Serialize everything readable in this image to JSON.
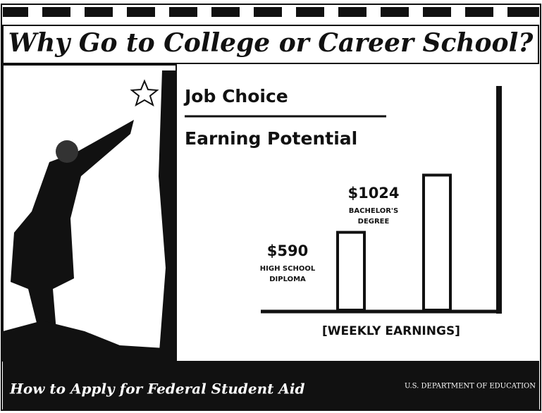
{
  "chart_data": {
    "type": "bar",
    "title": "Why Go to College or Career School?",
    "headings": [
      "Job Choice",
      "Earning Potential"
    ],
    "categories": [
      "HIGH SCHOOL DIPLOMA",
      "BACHELOR'S DEGREE"
    ],
    "values": [
      590,
      1024
    ],
    "value_labels": [
      "$590",
      "$1024"
    ],
    "color": "#ffffff",
    "ylim": [
      0,
      1700
    ],
    "xlabel": "[WEEKLY EARNINGS]",
    "footer": {
      "left": "How to Apply for Federal Student Aid",
      "right": "U.S. DEPARTMENT OF EDUCATION"
    }
  }
}
